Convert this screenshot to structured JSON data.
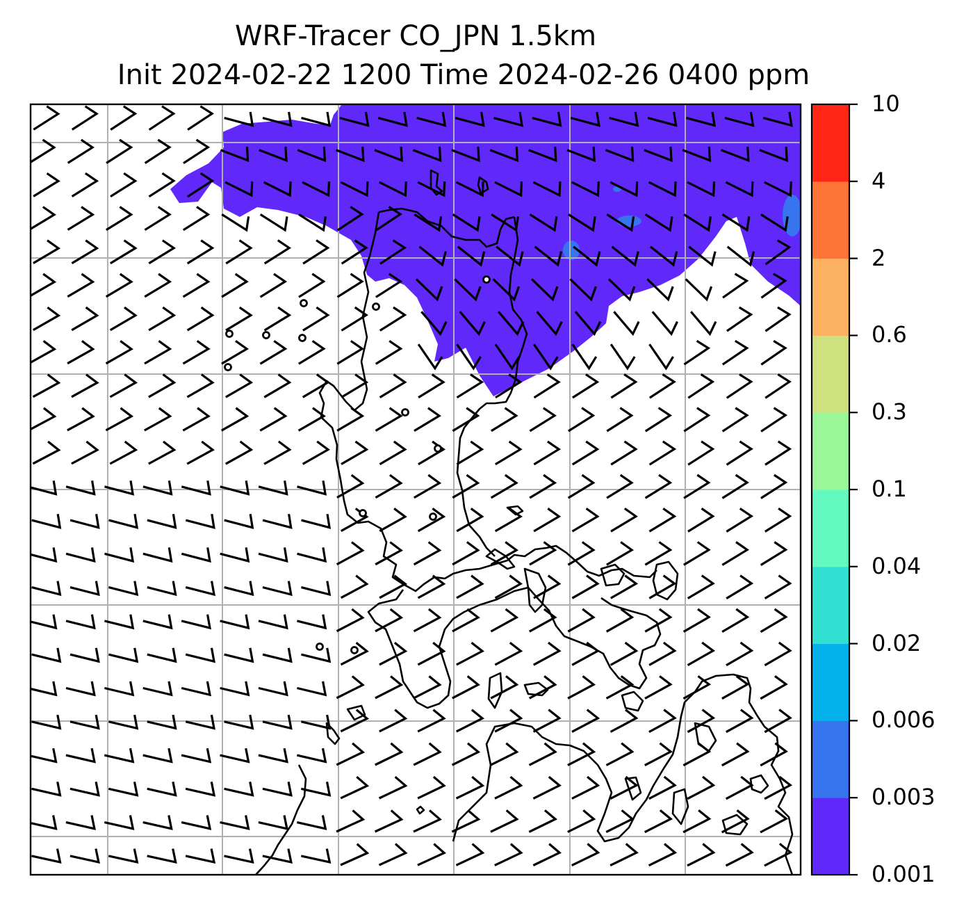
{
  "figure": {
    "title_line1": "WRF-Tracer CO_JPN 1.5km",
    "title_line2": "Init 2024-02-22 1200 Time 2024-02-26 0400 ppm"
  },
  "colorbar": {
    "levels": [
      "0.001",
      "0.003",
      "0.006",
      "0.02",
      "0.04",
      "0.1",
      "0.3",
      "0.6",
      "2",
      "4",
      "10"
    ],
    "colors": [
      "#6128fa",
      "#3674f0",
      "#04b1ea",
      "#32e0d2",
      "#62fac1",
      "#99f799",
      "#cfe17e",
      "#fdb262",
      "#ff7537",
      "#ff2616"
    ]
  },
  "colors": {
    "plume": "#6128fa",
    "plume_core": "#3674f0",
    "grid": "#b0b0b0",
    "coast": "#000000"
  }
}
